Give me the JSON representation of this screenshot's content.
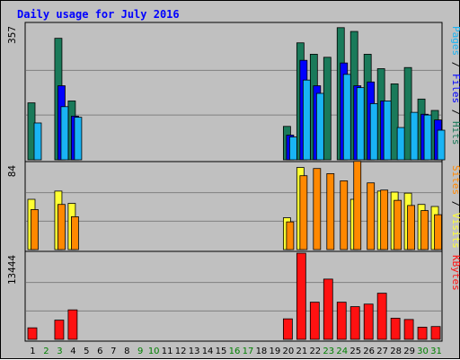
{
  "title": "Daily usage for July 2016",
  "colors": {
    "hits": "#1a7a5a",
    "files": "#0000ff",
    "pages": "#19b4f4",
    "visits": "#ffff33",
    "sites": "#ff8800",
    "kbytes": "#ff1111",
    "weekend_tick": "#008000",
    "weekday_tick": "#000000"
  },
  "chart_data": {
    "type": "bar",
    "title": "Daily usage for July 2016",
    "days": [
      "1",
      "2",
      "3",
      "4",
      "5",
      "6",
      "7",
      "8",
      "9",
      "10",
      "11",
      "12",
      "13",
      "14",
      "15",
      "16",
      "17",
      "18",
      "19",
      "20",
      "21",
      "22",
      "23",
      "24",
      "25",
      "26",
      "27",
      "28",
      "29",
      "30",
      "31"
    ],
    "weekend_days": [
      "2",
      "3",
      "9",
      "10",
      "16",
      "17",
      "23",
      "24",
      "30",
      "31"
    ],
    "panels": [
      {
        "name": "hits-files-pages",
        "axis_max_label": "357",
        "ymax": 357,
        "label_parts": [
          {
            "text": "Pages",
            "color_key": "pages"
          },
          {
            "text": " / ",
            "color_key": "weekday_tick"
          },
          {
            "text": "Files",
            "color_key": "files"
          },
          {
            "text": " / ",
            "color_key": "weekday_tick"
          },
          {
            "text": "Hits",
            "color_key": "hits"
          }
        ],
        "series": [
          {
            "name": "Hits",
            "color_key": "hits",
            "values": [
              150,
              0,
              320,
              155,
              0,
              0,
              0,
              0,
              0,
              0,
              0,
              0,
              0,
              0,
              0,
              0,
              0,
              0,
              0,
              88,
              308,
              278,
              270,
              348,
              338,
              278,
              240,
              200,
              243,
              160,
              130
            ]
          },
          {
            "name": "Files",
            "color_key": "files",
            "values": [
              0,
              0,
              195,
              115,
              0,
              0,
              0,
              0,
              0,
              0,
              0,
              0,
              0,
              0,
              0,
              0,
              0,
              0,
              0,
              65,
              262,
              195,
              0,
              255,
              195,
              205,
              155,
              0,
              0,
              120,
              105
            ]
          },
          {
            "name": "Pages",
            "color_key": "pages",
            "values": [
              97,
              0,
              140,
              112,
              0,
              0,
              0,
              0,
              0,
              0,
              0,
              0,
              0,
              0,
              0,
              0,
              0,
              0,
              0,
              60,
              210,
              175,
              0,
              225,
              190,
              148,
              155,
              85,
              125,
              118,
              78
            ]
          }
        ]
      },
      {
        "name": "visits-sites",
        "axis_max_label": "84",
        "ymax": 84,
        "label_parts": [
          {
            "text": "Sites",
            "color_key": "sites"
          },
          {
            "text": " / ",
            "color_key": "weekday_tick"
          },
          {
            "text": "Visits",
            "color_key": "visits"
          }
        ],
        "series": [
          {
            "name": "Visits",
            "color_key": "visits",
            "values": [
              49,
              0,
              57,
              45,
              0,
              0,
              0,
              0,
              0,
              0,
              0,
              0,
              0,
              0,
              0,
              0,
              0,
              0,
              0,
              31,
              80,
              0,
              0,
              0,
              49,
              0,
              57,
              56,
              55,
              44,
              42
            ]
          },
          {
            "name": "Sites",
            "color_key": "sites",
            "values": [
              39,
              0,
              44,
              32,
              0,
              0,
              0,
              0,
              0,
              0,
              0,
              0,
              0,
              0,
              0,
              0,
              0,
              0,
              0,
              27,
              72,
              79,
              74,
              67,
              86,
              65,
              58,
              48,
              43,
              38,
              34
            ]
          }
        ]
      },
      {
        "name": "kbytes",
        "axis_max_label": "13444",
        "ymax": 13444,
        "label_parts": [
          {
            "text": "KBytes",
            "color_key": "kbytes"
          }
        ],
        "series": [
          {
            "name": "KBytes",
            "color_key": "kbytes",
            "values": [
              1800,
              0,
              3000,
              4600,
              0,
              0,
              0,
              0,
              0,
              0,
              0,
              0,
              0,
              0,
              0,
              0,
              0,
              0,
              0,
              3200,
              13444,
              5800,
              9400,
              5800,
              5100,
              5500,
              7200,
              3300,
              3100,
              1900,
              2000
            ]
          }
        ]
      }
    ]
  }
}
